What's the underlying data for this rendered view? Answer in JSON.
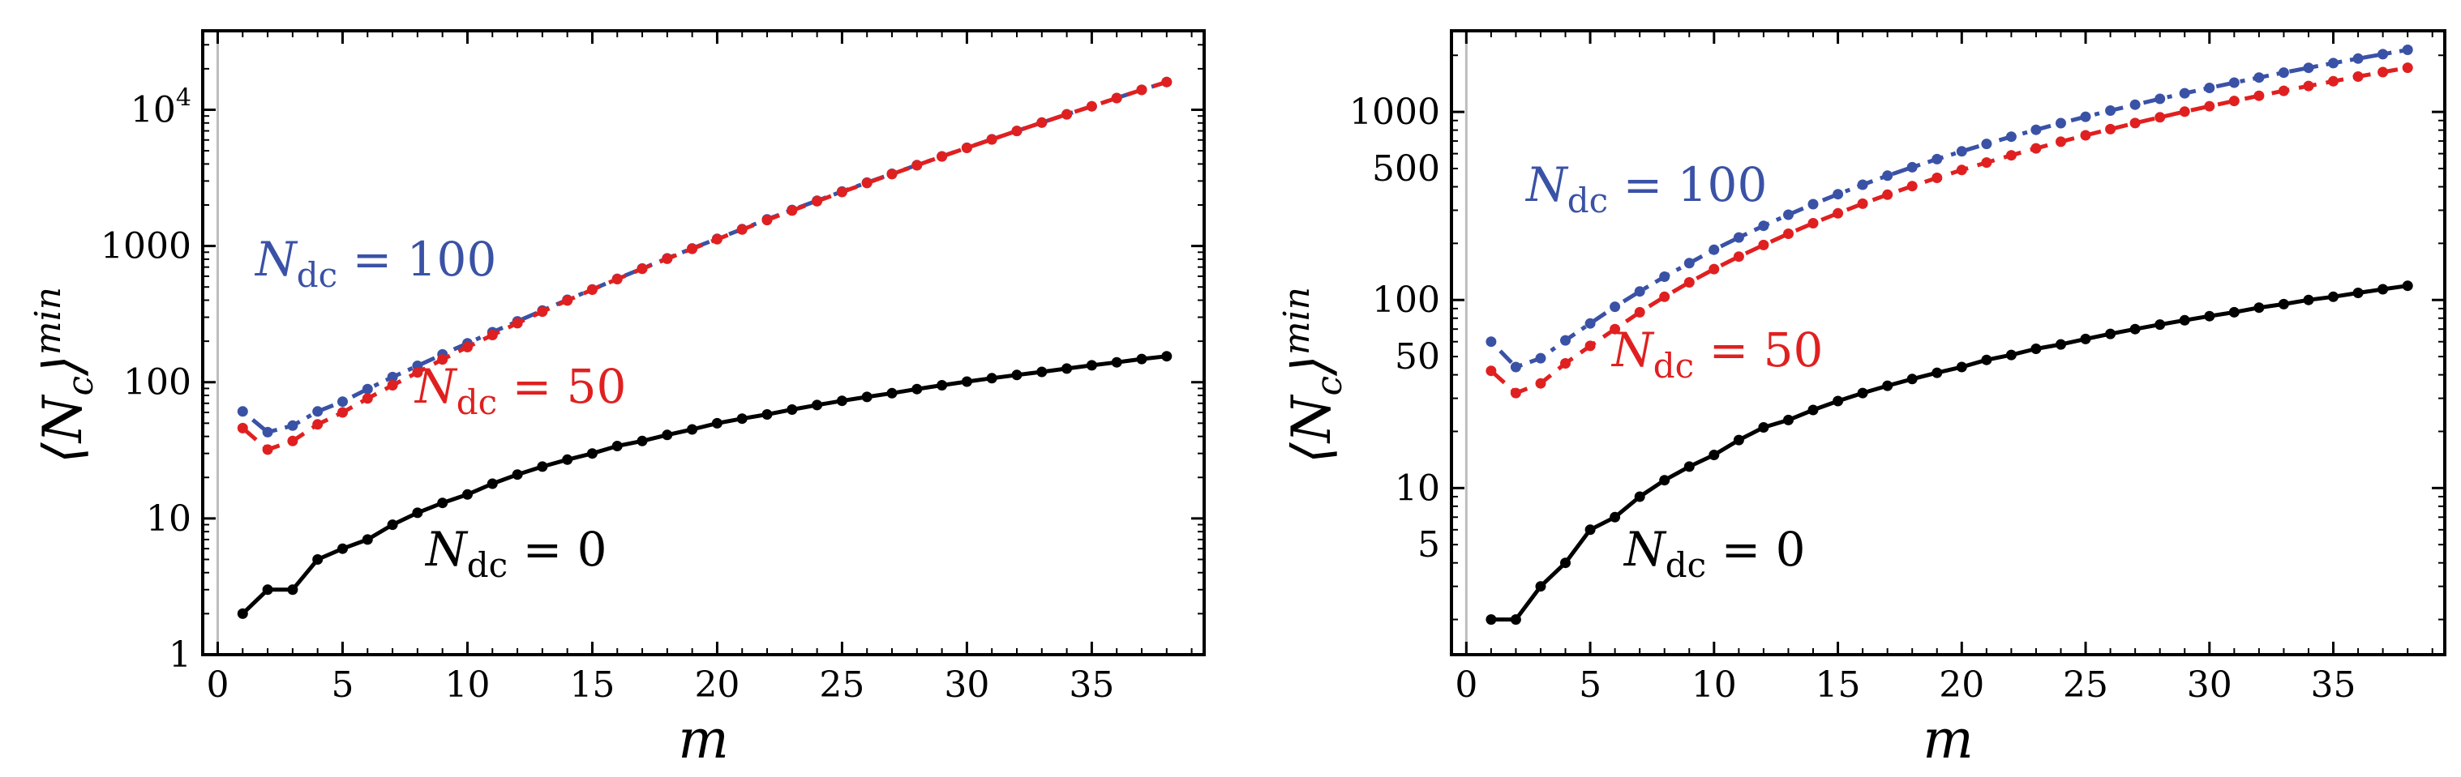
{
  "chart_data": [
    {
      "type": "line",
      "xlabel": "m",
      "ylabel": "⟨N_c⟩^min",
      "yscale": "log",
      "xlim": [
        -0.6,
        39.5
      ],
      "ylim": [
        1,
        38000
      ],
      "xticks": [
        0,
        5,
        10,
        15,
        20,
        25,
        30,
        35
      ],
      "yticks": [
        {
          "value": 1,
          "label": "1"
        },
        {
          "value": 10,
          "label": "10"
        },
        {
          "value": 100,
          "label": "100"
        },
        {
          "value": 1000,
          "label": "1000"
        },
        {
          "value": 10000,
          "label": "10^4"
        }
      ],
      "annotations": [
        {
          "label": "N_dc = 100",
          "color": "#3a52a6"
        },
        {
          "label": "N_dc = 50",
          "color": "#e02020"
        },
        {
          "label": "N_dc = 0",
          "color": "#000000"
        }
      ],
      "x": [
        1,
        2,
        3,
        4,
        5,
        6,
        7,
        8,
        9,
        10,
        11,
        12,
        13,
        14,
        15,
        16,
        17,
        18,
        19,
        20,
        21,
        22,
        23,
        24,
        25,
        26,
        27,
        28,
        29,
        30,
        31,
        32,
        33,
        34,
        35,
        36,
        37,
        38
      ],
      "series": [
        {
          "name": "N_dc = 100",
          "color": "#3a52a6",
          "style": "dotdash",
          "values": [
            61,
            43,
            48,
            61,
            72,
            89,
            109,
            132,
            160,
            193,
            233,
            280,
            336,
            403,
            480,
            574,
            683,
            811,
            960,
            1130,
            1330,
            1570,
            1840,
            2150,
            2510,
            2920,
            3390,
            3930,
            4550,
            5260,
            6070,
            6990,
            8050,
            9260,
            10600,
            12200,
            14000,
            16000
          ]
        },
        {
          "name": "N_dc = 50",
          "color": "#e02020",
          "style": "dashed",
          "values": [
            46,
            32,
            37,
            49,
            60,
            76,
            95,
            118,
            147,
            181,
            222,
            271,
            330,
            398,
            478,
            571,
            680,
            806,
            953,
            1120,
            1320,
            1550,
            1820,
            2130,
            2490,
            2900,
            3370,
            3910,
            4540,
            5250,
            6060,
            6990,
            8050,
            9260,
            10600,
            12200,
            14000,
            16000
          ]
        },
        {
          "name": "N_dc = 0",
          "color": "#000000",
          "style": "solid",
          "values": [
            2,
            3,
            3,
            5,
            6,
            7,
            9,
            11,
            13,
            15,
            18,
            21,
            24,
            27,
            30,
            34,
            37,
            41,
            45,
            50,
            54,
            58,
            63,
            68,
            73,
            78,
            83,
            89,
            95,
            101,
            107,
            113,
            119,
            126,
            133,
            140,
            148,
            155
          ]
        }
      ]
    },
    {
      "type": "line",
      "xlabel": "m",
      "ylabel": "⟨N_c⟩^min",
      "yscale": "log",
      "xlim": [
        -0.6,
        39.5
      ],
      "ylim": [
        1.3,
        2700
      ],
      "xticks": [
        0,
        5,
        10,
        15,
        20,
        25,
        30,
        35
      ],
      "yticks": [
        {
          "value": 5,
          "label": "5"
        },
        {
          "value": 10,
          "label": "10"
        },
        {
          "value": 50,
          "label": "50"
        },
        {
          "value": 100,
          "label": "100"
        },
        {
          "value": 500,
          "label": "500"
        },
        {
          "value": 1000,
          "label": "1000"
        }
      ],
      "annotations": [
        {
          "label": "N_dc = 100",
          "color": "#3a52a6"
        },
        {
          "label": "N_dc = 50",
          "color": "#e02020"
        },
        {
          "label": "N_dc = 0",
          "color": "#000000"
        }
      ],
      "x": [
        1,
        2,
        3,
        4,
        5,
        6,
        7,
        8,
        9,
        10,
        11,
        12,
        13,
        14,
        15,
        16,
        17,
        18,
        19,
        20,
        21,
        22,
        23,
        24,
        25,
        26,
        27,
        28,
        29,
        30,
        31,
        32,
        33,
        34,
        35,
        36,
        37,
        38
      ],
      "series": [
        {
          "name": "N_dc = 100",
          "color": "#3a52a6",
          "style": "dotdash",
          "values": [
            60,
            44,
            49,
            61,
            75,
            92,
            111,
            133,
            157,
            185,
            215,
            248,
            284,
            323,
            365,
            410,
            458,
            508,
            561,
            617,
            676,
            738,
            803,
            871,
            942,
            1016,
            1093,
            1173,
            1256,
            1342,
            1431,
            1523,
            1618,
            1716,
            1817,
            1921,
            2028,
            2138
          ]
        },
        {
          "name": "N_dc = 50",
          "color": "#e02020",
          "style": "dashed",
          "values": [
            42,
            32,
            36,
            46,
            57,
            70,
            86,
            104,
            124,
            146,
            170,
            196,
            225,
            256,
            289,
            325,
            363,
            403,
            446,
            491,
            538,
            588,
            640,
            694,
            751,
            810,
            872,
            936,
            1003,
            1072,
            1144,
            1218,
            1295,
            1374,
            1456,
            1541,
            1628,
            1718
          ]
        },
        {
          "name": "N_dc = 0",
          "color": "#000000",
          "style": "solid",
          "values": [
            2,
            2,
            3,
            4,
            6,
            7,
            9,
            11,
            13,
            15,
            18,
            21,
            23,
            26,
            29,
            32,
            35,
            38,
            41,
            44,
            48,
            51,
            55,
            58,
            62,
            66,
            70,
            74,
            78,
            82,
            86,
            91,
            95,
            100,
            104,
            109,
            114,
            119
          ]
        }
      ]
    }
  ]
}
